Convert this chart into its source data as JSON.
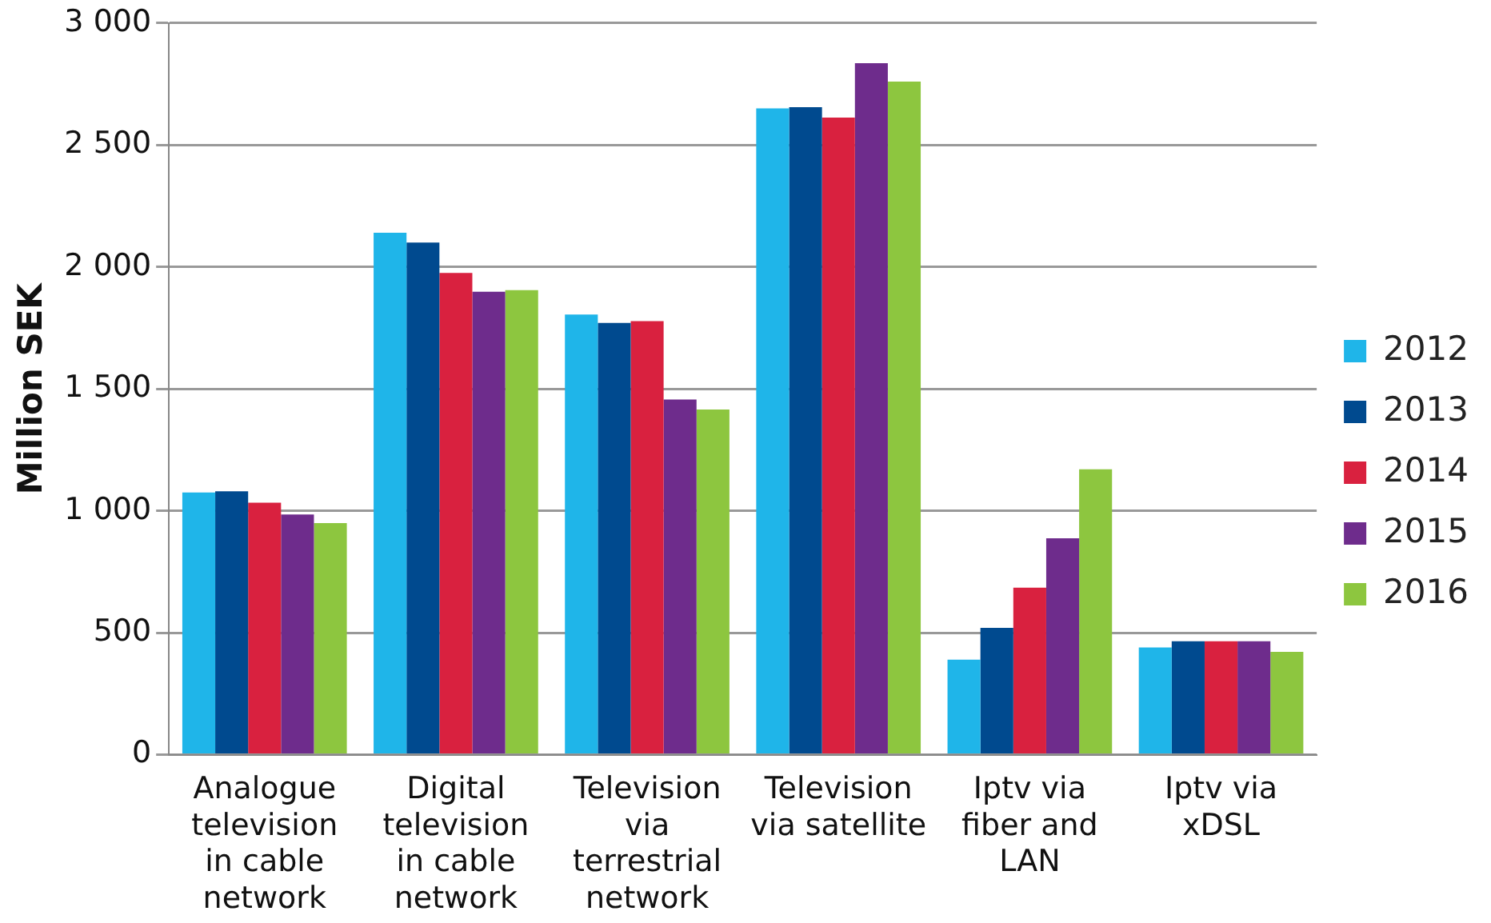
{
  "chart_data": {
    "type": "bar",
    "ylabel": "Million SEK",
    "categories": [
      "Analogue television in cable network",
      "Digital television in cable network",
      "Television via terrestrial network",
      "Television via satellite",
      "Iptv via fiber and LAN",
      "Iptv via xDSL"
    ],
    "series": [
      {
        "name": "2012",
        "color": "#1fb5e9",
        "values": [
          1075,
          2140,
          1805,
          2650,
          390,
          440
        ]
      },
      {
        "name": "2013",
        "color": "#004a8f",
        "values": [
          1080,
          2100,
          1770,
          2655,
          520,
          465
        ]
      },
      {
        "name": "2014",
        "color": "#d9213f",
        "values": [
          1033,
          1975,
          1778,
          2612,
          685,
          465
        ]
      },
      {
        "name": "2015",
        "color": "#6e2c8c",
        "values": [
          985,
          1898,
          1456,
          2835,
          887,
          465
        ]
      },
      {
        "name": "2016",
        "color": "#8dc63f",
        "values": [
          950,
          1905,
          1415,
          2760,
          1170,
          422
        ]
      }
    ],
    "ylim": [
      0,
      3000
    ],
    "yticks": [
      {
        "value": 0,
        "label": "0"
      },
      {
        "value": 500,
        "label": "500"
      },
      {
        "value": 1000,
        "label": "1 000"
      },
      {
        "value": 1500,
        "label": "1 500"
      },
      {
        "value": 2000,
        "label": "2 000"
      },
      {
        "value": 2500,
        "label": "2 500"
      },
      {
        "value": 3000,
        "label": "3 000"
      }
    ],
    "grid": "y",
    "legend": "right"
  }
}
